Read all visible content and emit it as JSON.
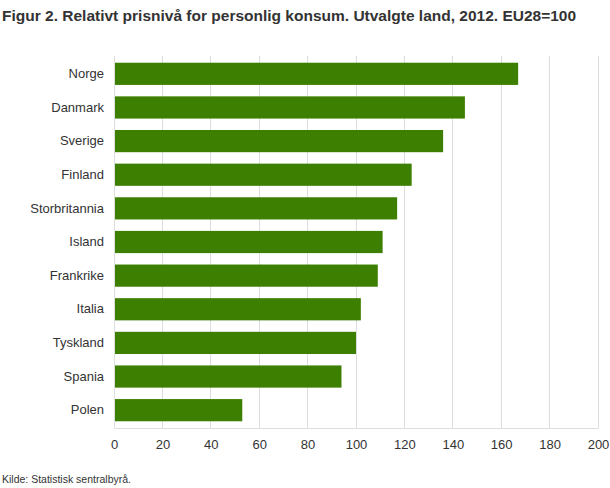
{
  "chart_data": {
    "type": "bar",
    "orientation": "horizontal",
    "title": "Figur 2. Relativt prisnivå for personlig konsum. Utvalgte land, 2012. EU28=100",
    "source": "Kilde: Statistisk sentralbyrå.",
    "categories": [
      "Norge",
      "Danmark",
      "Sverige",
      "Finland",
      "Storbritannia",
      "Island",
      "Frankrike",
      "Italia",
      "Tyskland",
      "Spania",
      "Polen"
    ],
    "values": [
      167,
      145,
      136,
      123,
      117,
      111,
      109,
      102,
      100,
      94,
      53
    ],
    "color": "#3d7f00",
    "xlim": [
      0,
      200
    ],
    "xticks": [
      0,
      20,
      40,
      60,
      80,
      100,
      120,
      140,
      160,
      180,
      200
    ],
    "grid": true
  }
}
